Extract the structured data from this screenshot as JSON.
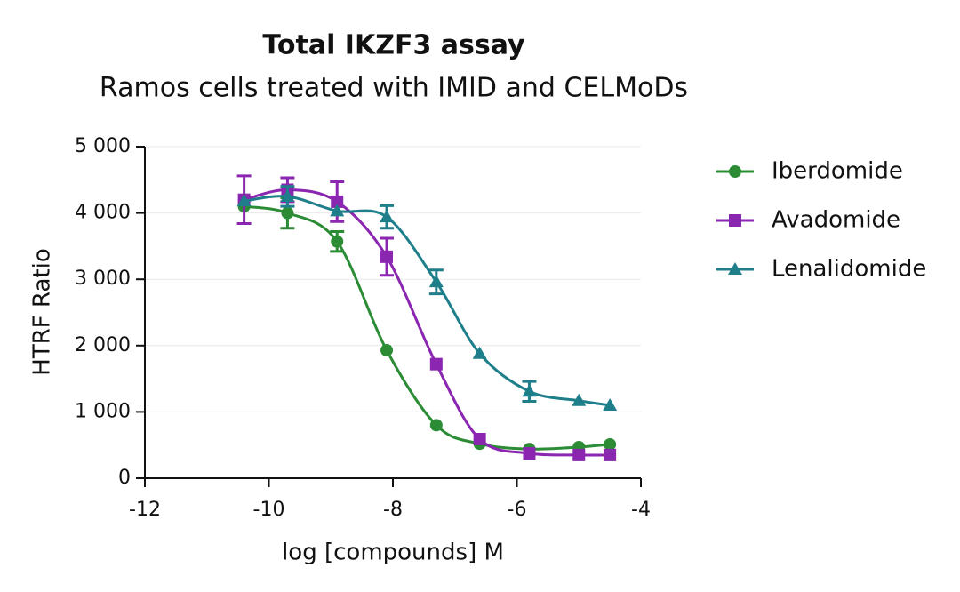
{
  "chart_data": {
    "type": "scatter",
    "title": "Total IKZF3 assay",
    "subtitle": "Ramos cells treated with IMID and CELMoDs",
    "x_label": "log [compounds] M",
    "y_label": "HTRF Ratio",
    "xlim": [
      -12,
      -4
    ],
    "xticks": [
      -12,
      -10,
      -8,
      -6,
      -4
    ],
    "ylim": [
      0,
      5000
    ],
    "yticks": [
      0,
      {
        "value": 1000,
        "label": "1 000"
      },
      {
        "value": 2000,
        "label": "2 000"
      },
      {
        "value": 3000,
        "label": "3 000"
      },
      {
        "value": 4000,
        "label": "4 000"
      },
      {
        "value": 5000,
        "label": "5 000"
      }
    ],
    "grid": true,
    "legend": "right",
    "x": [
      -10.4,
      -9.7,
      -8.9,
      -8.1,
      -7.3,
      -6.6,
      -5.8,
      -5.0,
      -4.5
    ],
    "series": [
      {
        "name": "Iberdomide",
        "color": "#2b8c35",
        "marker": "circle",
        "values": [
          4100,
          4000,
          3570,
          1930,
          800,
          520,
          440,
          470,
          510
        ],
        "errors": [
          null,
          230,
          150,
          null,
          null,
          null,
          null,
          null,
          null
        ]
      },
      {
        "name": "Avadomide",
        "color": "#8a26b0",
        "marker": "square",
        "values": [
          4200,
          4350,
          4170,
          3340,
          1720,
          590,
          375,
          350,
          350
        ],
        "errors": [
          360,
          180,
          300,
          280,
          null,
          null,
          null,
          null,
          null
        ]
      },
      {
        "name": "Lenalidomide",
        "color": "#1e7f8a",
        "marker": "triangle",
        "values": [
          4180,
          4250,
          4030,
          3940,
          2960,
          1880,
          1310,
          1170,
          1100
        ],
        "errors": [
          null,
          150,
          null,
          170,
          180,
          null,
          150,
          null,
          null
        ]
      }
    ]
  }
}
